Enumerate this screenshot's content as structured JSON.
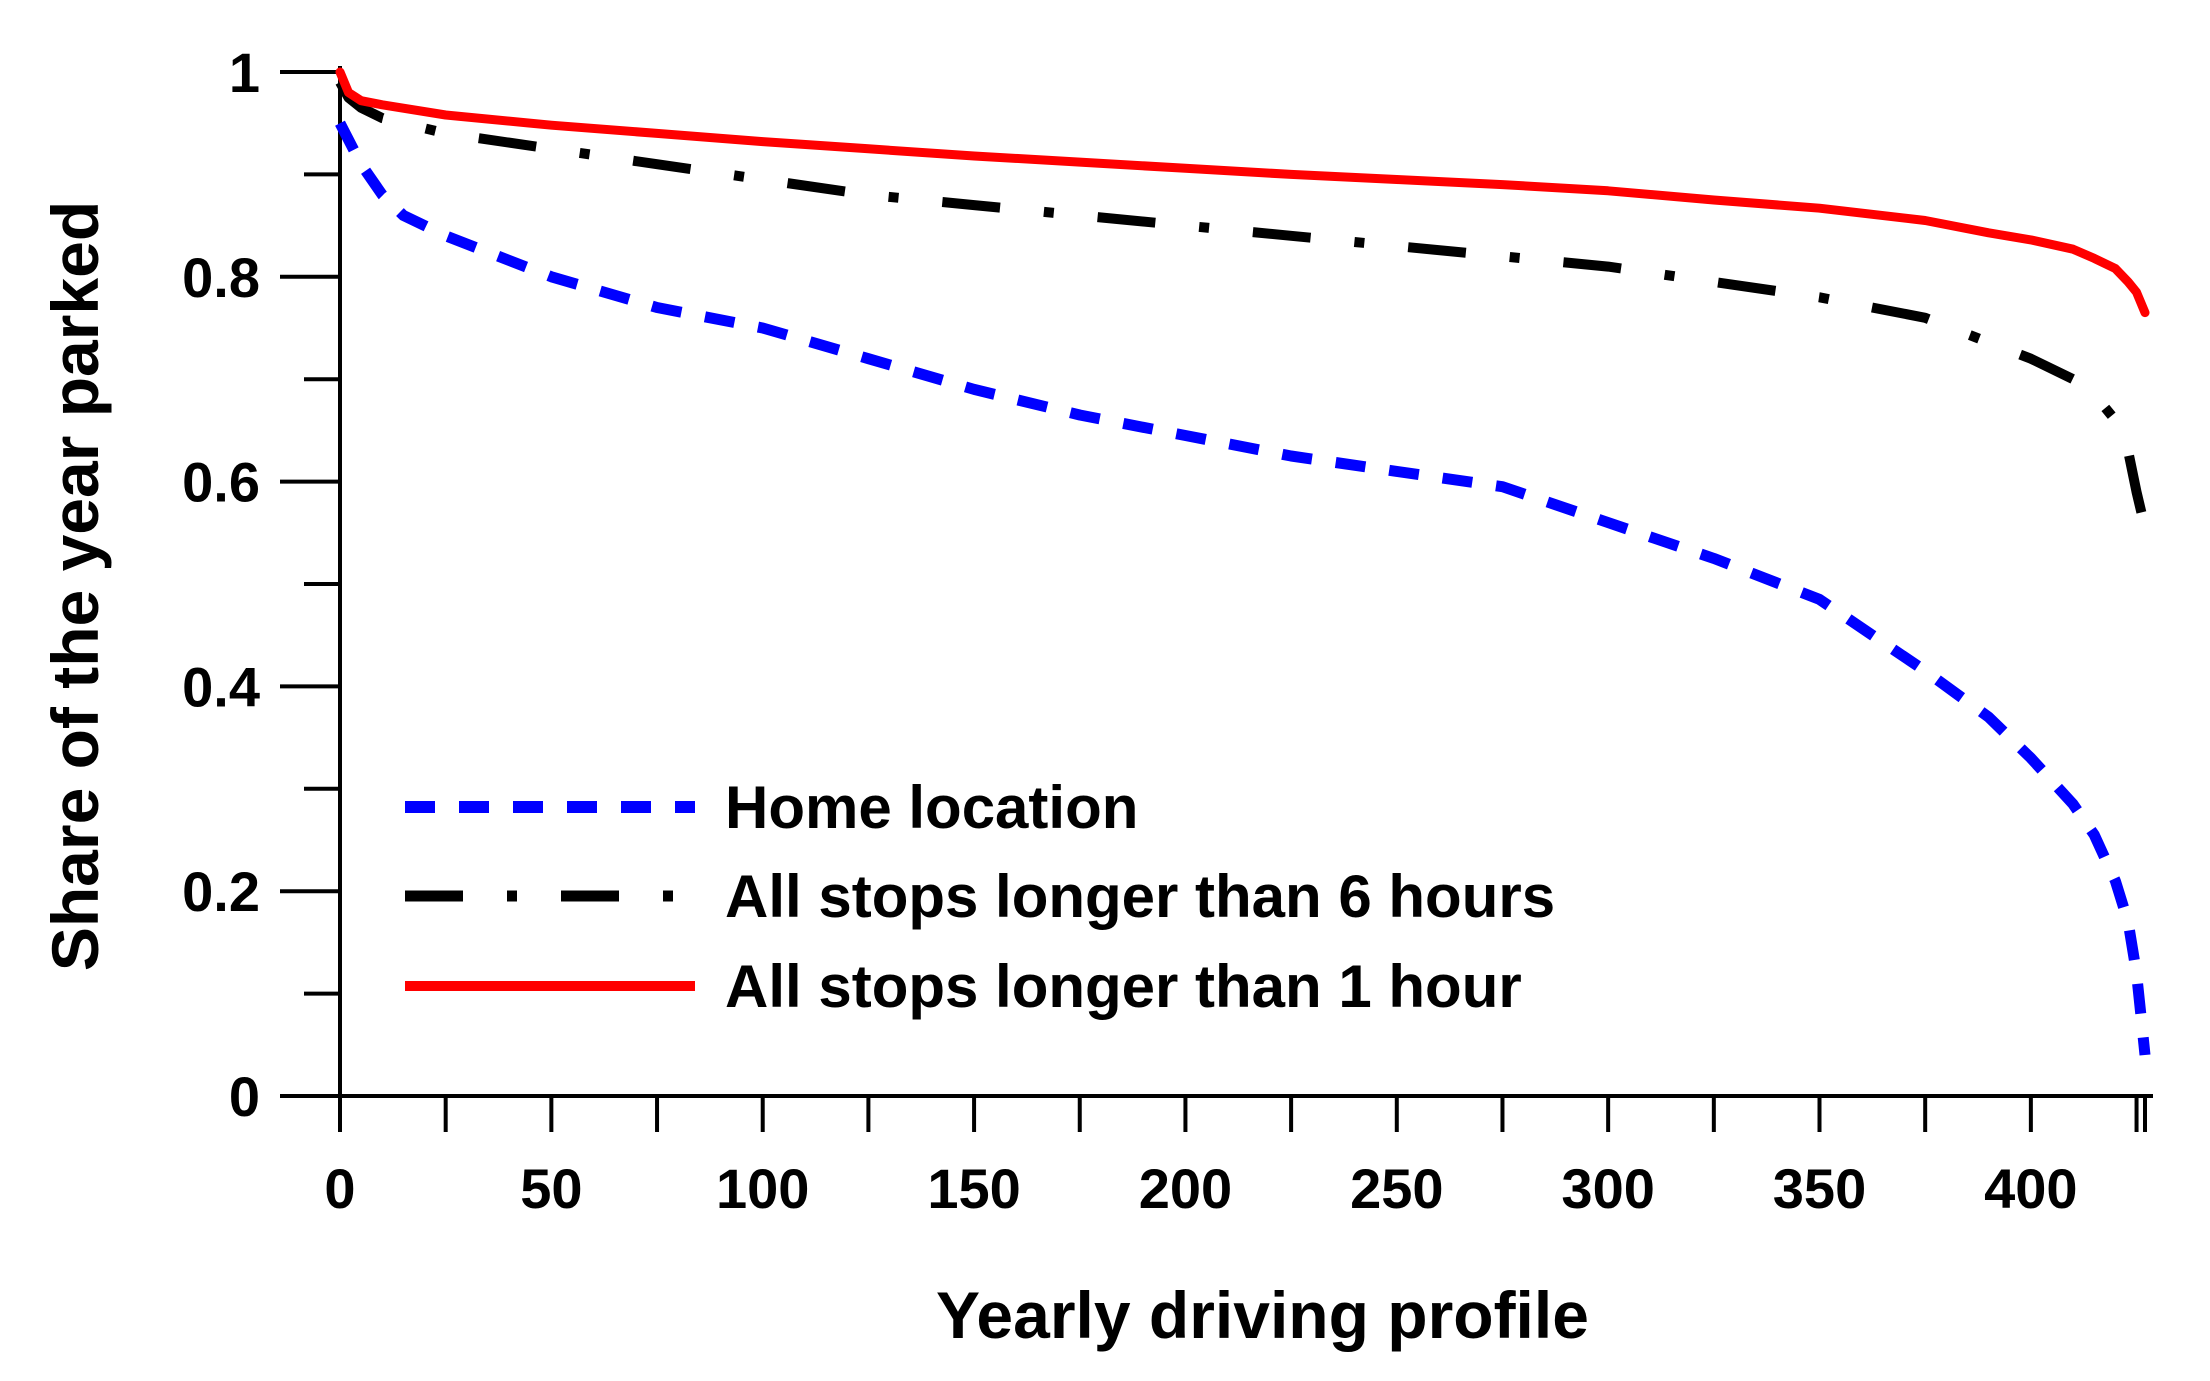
{
  "chart_data": {
    "type": "line",
    "title": "",
    "xlabel": "Yearly driving profile",
    "ylabel": "Share of the year parked",
    "xlim": [
      0,
      427
    ],
    "ylim": [
      0,
      1
    ],
    "x_ticks": [
      0,
      50,
      100,
      150,
      200,
      250,
      300,
      350,
      400
    ],
    "x_tick_labels": [
      "0",
      "50",
      "100",
      "150",
      "200",
      "250",
      "300",
      "350",
      "400"
    ],
    "y_ticks": [
      0,
      0.2,
      0.4,
      0.6,
      0.8,
      1
    ],
    "y_tick_labels": [
      "0",
      "0.2",
      "0.4",
      "0.6",
      "0.8",
      "1"
    ],
    "grid": false,
    "legend_position": "bottom-left",
    "series": [
      {
        "name": "Home location",
        "color": "#0000ff",
        "style": "dotted",
        "points": [
          [
            0,
            0.95
          ],
          [
            5,
            0.91
          ],
          [
            10,
            0.88
          ],
          [
            15,
            0.86
          ],
          [
            25,
            0.84
          ],
          [
            50,
            0.8
          ],
          [
            75,
            0.77
          ],
          [
            100,
            0.75
          ],
          [
            125,
            0.72
          ],
          [
            150,
            0.69
          ],
          [
            175,
            0.665
          ],
          [
            200,
            0.645
          ],
          [
            225,
            0.625
          ],
          [
            250,
            0.61
          ],
          [
            275,
            0.595
          ],
          [
            300,
            0.56
          ],
          [
            325,
            0.525
          ],
          [
            350,
            0.485
          ],
          [
            375,
            0.415
          ],
          [
            390,
            0.37
          ],
          [
            400,
            0.33
          ],
          [
            410,
            0.285
          ],
          [
            415,
            0.255
          ],
          [
            420,
            0.21
          ],
          [
            423,
            0.17
          ],
          [
            425,
            0.12
          ],
          [
            426,
            0.08
          ],
          [
            427,
            0.04
          ]
        ]
      },
      {
        "name": "All stops longer than 6 hours",
        "color": "#000000",
        "style": "dashdot",
        "points": [
          [
            0,
            0.99
          ],
          [
            2,
            0.975
          ],
          [
            5,
            0.965
          ],
          [
            10,
            0.955
          ],
          [
            25,
            0.94
          ],
          [
            50,
            0.925
          ],
          [
            75,
            0.91
          ],
          [
            100,
            0.895
          ],
          [
            125,
            0.88
          ],
          [
            150,
            0.87
          ],
          [
            175,
            0.86
          ],
          [
            200,
            0.85
          ],
          [
            225,
            0.84
          ],
          [
            250,
            0.83
          ],
          [
            275,
            0.82
          ],
          [
            300,
            0.81
          ],
          [
            325,
            0.795
          ],
          [
            350,
            0.78
          ],
          [
            375,
            0.76
          ],
          [
            400,
            0.72
          ],
          [
            410,
            0.7
          ],
          [
            415,
            0.685
          ],
          [
            420,
            0.66
          ],
          [
            423,
            0.63
          ],
          [
            425,
            0.59
          ],
          [
            427,
            0.555
          ]
        ]
      },
      {
        "name": "All stops longer than 1 hour",
        "color": "#ff0000",
        "style": "solid",
        "points": [
          [
            0,
            1
          ],
          [
            2,
            0.98
          ],
          [
            5,
            0.972
          ],
          [
            10,
            0.968
          ],
          [
            25,
            0.958
          ],
          [
            50,
            0.948
          ],
          [
            75,
            0.94
          ],
          [
            100,
            0.932
          ],
          [
            125,
            0.925
          ],
          [
            150,
            0.918
          ],
          [
            175,
            0.912
          ],
          [
            200,
            0.906
          ],
          [
            225,
            0.9
          ],
          [
            250,
            0.895
          ],
          [
            275,
            0.89
          ],
          [
            300,
            0.884
          ],
          [
            325,
            0.875
          ],
          [
            350,
            0.867
          ],
          [
            375,
            0.855
          ],
          [
            390,
            0.843
          ],
          [
            400,
            0.836
          ],
          [
            410,
            0.827
          ],
          [
            415,
            0.818
          ],
          [
            420,
            0.808
          ],
          [
            423,
            0.795
          ],
          [
            425,
            0.785
          ],
          [
            427,
            0.765
          ]
        ]
      }
    ]
  }
}
